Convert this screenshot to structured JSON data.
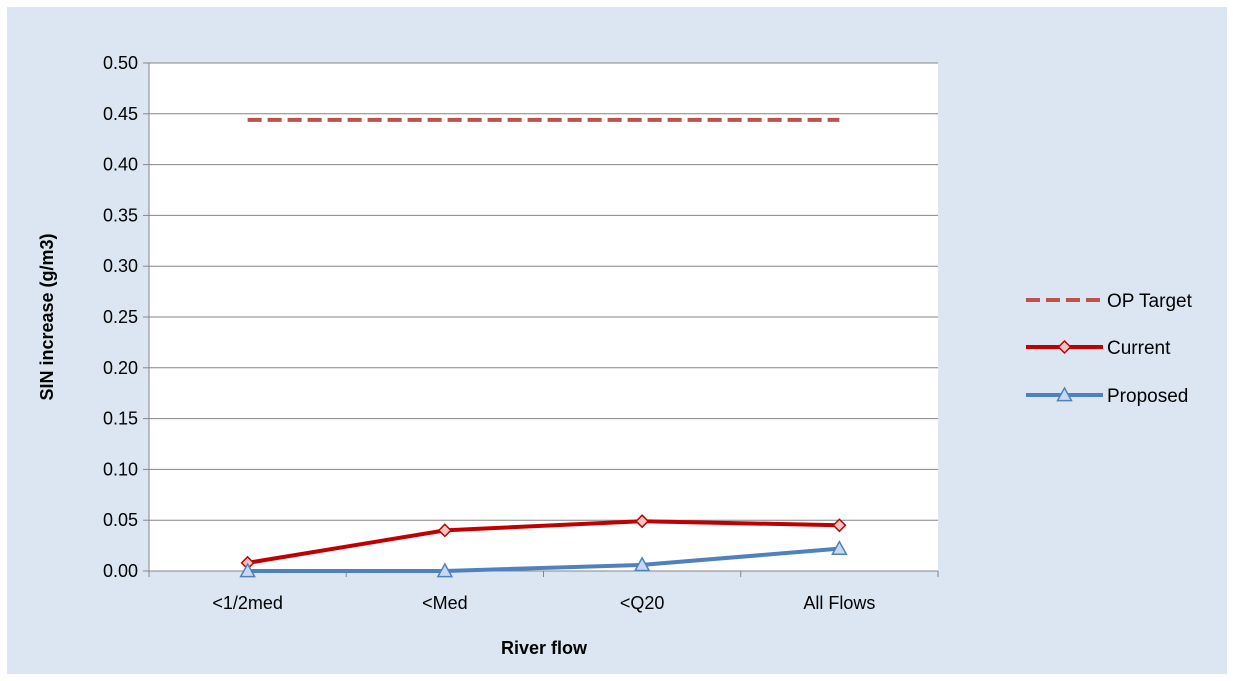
{
  "chart_data": {
    "type": "line",
    "xlabel": "River flow",
    "ylabel": "SIN increase (g/m3)",
    "categories": [
      "<1/2med",
      "<Med",
      "<Q20",
      "All Flows"
    ],
    "ylim": [
      0,
      0.5
    ],
    "ytick_labels": [
      "0.00",
      "0.05",
      "0.10",
      "0.15",
      "0.20",
      "0.25",
      "0.30",
      "0.35",
      "0.40",
      "0.45",
      "0.50"
    ],
    "grid": true,
    "legend_position": "right",
    "series": [
      {
        "name": "OP Target",
        "values": [
          0.444,
          0.444,
          0.444,
          0.444
        ],
        "color": "#c0504d",
        "style": "dashed",
        "marker": "none"
      },
      {
        "name": "Current",
        "values": [
          0.008,
          0.04,
          0.049,
          0.045
        ],
        "color": "#c00000",
        "style": "solid",
        "marker": "diamond"
      },
      {
        "name": "Proposed",
        "values": [
          0.0,
          0.0,
          0.006,
          0.022
        ],
        "color": "#4f81bd",
        "style": "solid",
        "marker": "triangle"
      }
    ]
  }
}
